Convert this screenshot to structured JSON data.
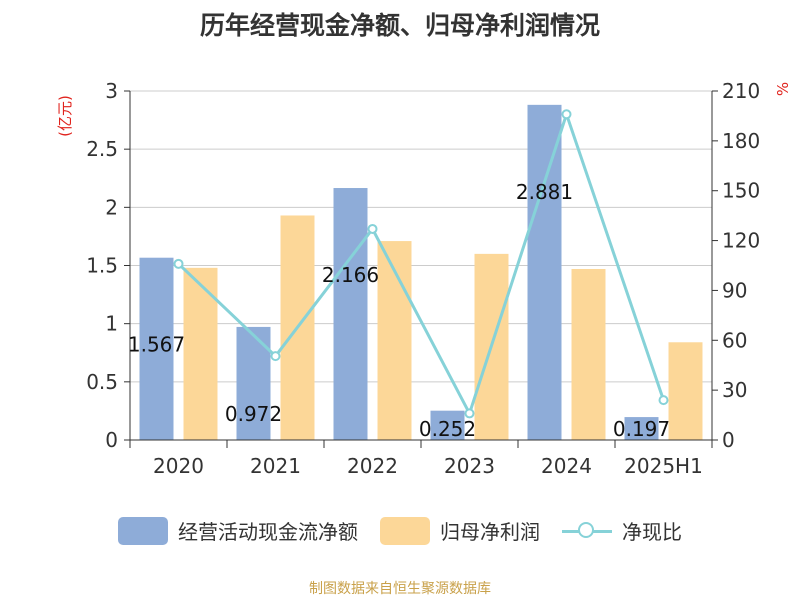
{
  "title": "历年经营现金净额、归母净利润情况",
  "source_note": "制图数据来自恒生聚源数据库",
  "colors": {
    "cash_flow": "#8eacd8",
    "net_profit": "#fcd798",
    "ratio": "#86d2d8",
    "axis_label_red": "#e0231d",
    "source_text": "#c9a14a"
  },
  "chart_data": {
    "type": "bar",
    "title": "历年经营现金净额、归母净利润情况",
    "categories": [
      "2020",
      "2021",
      "2022",
      "2023",
      "2024",
      "2025H1"
    ],
    "y_left": {
      "label": "(亿元)",
      "lim": [
        0,
        3
      ],
      "ticks": [
        "0",
        "0.5",
        "1",
        "1.5",
        "2",
        "2.5",
        "3"
      ]
    },
    "y_right": {
      "label": "%",
      "lim": [
        0,
        210
      ],
      "ticks": [
        "0",
        "30",
        "60",
        "90",
        "120",
        "150",
        "180",
        "210"
      ]
    },
    "series": [
      {
        "name": "经营活动现金流净额",
        "type": "bar",
        "axis": "left",
        "values": [
          1.567,
          0.972,
          2.166,
          0.252,
          2.881,
          0.197
        ],
        "labels": [
          "1.567",
          "0.972",
          "2.166",
          "0.252",
          "2.881",
          "0.197"
        ]
      },
      {
        "name": "归母净利润",
        "type": "bar",
        "axis": "left",
        "values": [
          1.48,
          1.93,
          1.71,
          1.6,
          1.47,
          0.84
        ]
      },
      {
        "name": "净现比",
        "type": "line",
        "axis": "right",
        "values": [
          106,
          50.5,
          127,
          16,
          196,
          24
        ]
      }
    ],
    "grid": true,
    "legend_position": "bottom"
  }
}
